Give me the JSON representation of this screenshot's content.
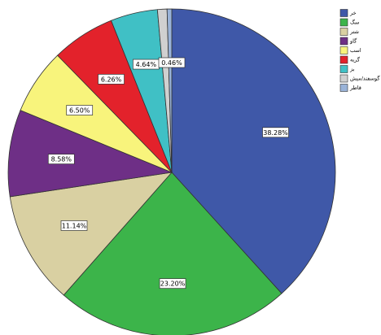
{
  "chart_data": {
    "type": "pie",
    "categories": [
      "خر",
      "سگ",
      "شتر",
      "گاو",
      "اسب",
      "گربه",
      "بز",
      "گوسفند/میش",
      "قاطر"
    ],
    "values": [
      38.28,
      23.2,
      11.14,
      8.58,
      6.5,
      6.26,
      4.64,
      0.94,
      0.46
    ],
    "value_labels": [
      "38.28%",
      "23.20%",
      "11.14%",
      "8.58%",
      "6.50%",
      "6.26%",
      "4.64%",
      null,
      "0.46%"
    ],
    "colors": [
      "#3f58a8",
      "#3cb44a",
      "#d9d0a2",
      "#6e2f86",
      "#f8f47c",
      "#e3222b",
      "#40c0c5",
      "#d0d0d0",
      "#9ab3d8"
    ]
  }
}
